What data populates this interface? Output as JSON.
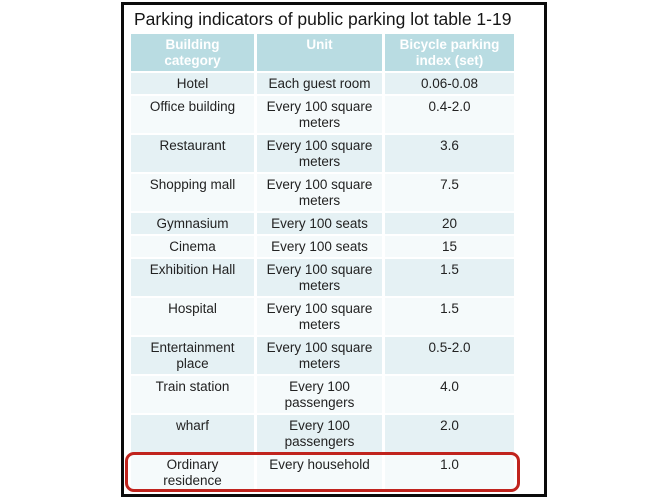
{
  "title": "Parking indicators of public parking lot table 1-19",
  "table": {
    "columns": [
      "Building category",
      "Unit",
      "Bicycle parking index (set)"
    ],
    "rows": [
      {
        "category": "Hotel",
        "unit": "Each guest room",
        "index": "0.06-0.08",
        "highlighted": false
      },
      {
        "category": "Office building",
        "unit": "Every 100 square meters",
        "index": "0.4-2.0",
        "highlighted": false
      },
      {
        "category": "Restaurant",
        "unit": "Every 100 square meters",
        "index": "3.6",
        "highlighted": false
      },
      {
        "category": "Shopping mall",
        "unit": "Every 100 square meters",
        "index": "7.5",
        "highlighted": false
      },
      {
        "category": "Gymnasium",
        "unit": "Every 100 seats",
        "index": "20",
        "highlighted": false
      },
      {
        "category": "Cinema",
        "unit": "Every 100 seats",
        "index": "15",
        "highlighted": false
      },
      {
        "category": "Exhibition Hall",
        "unit": "Every 100 square meters",
        "index": "1.5",
        "highlighted": false
      },
      {
        "category": "Hospital",
        "unit": "Every 100 square meters",
        "index": "1.5",
        "highlighted": false
      },
      {
        "category": "Entertainment place",
        "unit": "Every 100 square meters",
        "index": "0.5-2.0",
        "highlighted": false
      },
      {
        "category": "Train station",
        "unit": "Every 100 passengers",
        "index": "4.0",
        "highlighted": false
      },
      {
        "category": "wharf",
        "unit": "Every 100 passengers",
        "index": "2.0",
        "highlighted": false
      },
      {
        "category": "Ordinary residence",
        "unit": "Every household",
        "index": "1.0",
        "highlighted": true
      }
    ]
  },
  "colors": {
    "frame_border": "#0b0b0b",
    "header_bg": "#b9dce2",
    "row_odd_bg": "#e5f1f4",
    "row_even_bg": "#f5fafb",
    "highlight_border": "#c0231d",
    "header_text": "#ffffff",
    "body_text": "#222222"
  }
}
